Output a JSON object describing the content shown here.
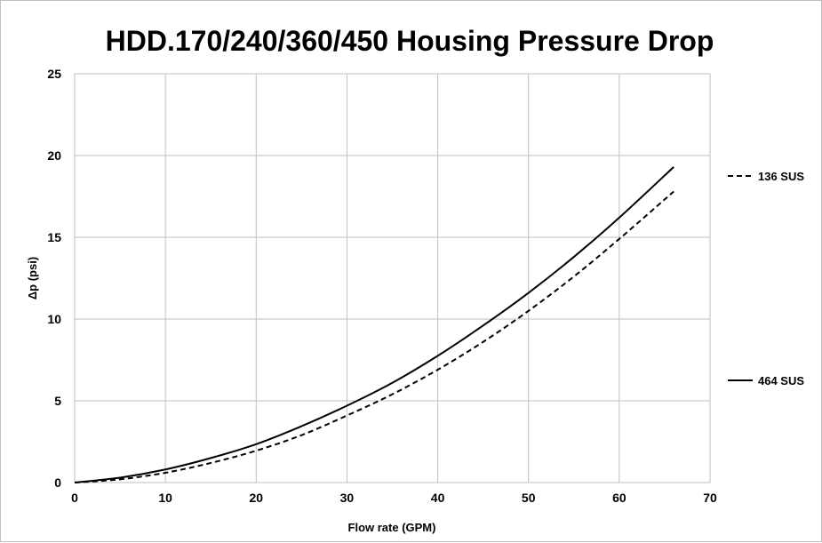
{
  "chart_data": {
    "type": "line",
    "title": "HDD.170/240/360/450 Housing Pressure Drop",
    "xlabel": "Flow rate (GPM)",
    "ylabel": "Δp (psi)",
    "xlim": [
      0,
      70
    ],
    "ylim": [
      0,
      25
    ],
    "xticks": [
      0,
      10,
      20,
      30,
      40,
      50,
      60,
      70
    ],
    "yticks": [
      0,
      5,
      10,
      15,
      20,
      25
    ],
    "grid": true,
    "legend_position": "right",
    "series": [
      {
        "name": "136 SUS",
        "style": "dashed",
        "color": "#000000",
        "x": [
          0,
          5,
          10,
          15,
          20,
          25,
          30,
          35,
          40,
          45,
          50,
          55,
          60,
          66
        ],
        "y": [
          0,
          0.2,
          0.6,
          1.2,
          1.95,
          2.9,
          4.1,
          5.4,
          6.9,
          8.6,
          10.5,
          12.6,
          14.9,
          17.8
        ]
      },
      {
        "name": "464 SUS",
        "style": "solid",
        "color": "#000000",
        "x": [
          0,
          5,
          10,
          15,
          20,
          25,
          30,
          35,
          40,
          45,
          50,
          55,
          60,
          66
        ],
        "y": [
          0,
          0.3,
          0.8,
          1.5,
          2.35,
          3.45,
          4.7,
          6.1,
          7.75,
          9.6,
          11.6,
          13.8,
          16.2,
          19.3
        ]
      }
    ]
  }
}
